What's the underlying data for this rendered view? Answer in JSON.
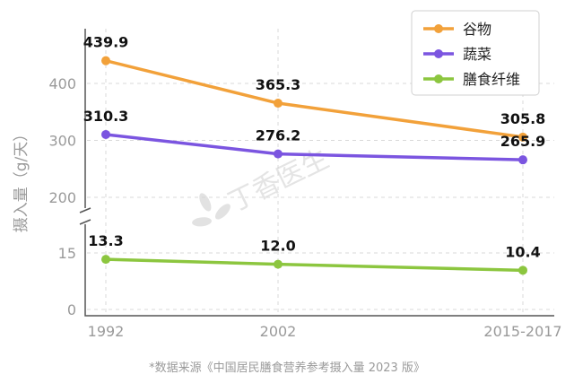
{
  "chart_data": {
    "type": "line",
    "categories": [
      "1992",
      "2002",
      "2015-2017"
    ],
    "series": [
      {
        "name": "谷物",
        "color": "#f2a13a",
        "values": [
          439.9,
          365.3,
          305.8
        ],
        "labels": [
          "439.9",
          "365.3",
          "305.8"
        ]
      },
      {
        "name": "蔬菜",
        "color": "#7b55e0",
        "values": [
          310.3,
          276.2,
          265.9
        ],
        "labels": [
          "310.3",
          "276.2",
          "265.9"
        ]
      },
      {
        "name": "膳食纤维",
        "color": "#8cc63f",
        "values": [
          13.3,
          12.0,
          10.4
        ],
        "labels": [
          "13.3",
          "12.0",
          "10.4"
        ]
      }
    ],
    "ylabel": "摄入量（g/天）",
    "yticks": [
      "0",
      "15",
      "200",
      "300",
      "400"
    ],
    "axis_break": true,
    "legend_position": "top-right",
    "grid": true
  },
  "source_note": "*数据来源《中国居民膳食营养参考摄入量 2023 版》",
  "watermark": "丁香医生"
}
